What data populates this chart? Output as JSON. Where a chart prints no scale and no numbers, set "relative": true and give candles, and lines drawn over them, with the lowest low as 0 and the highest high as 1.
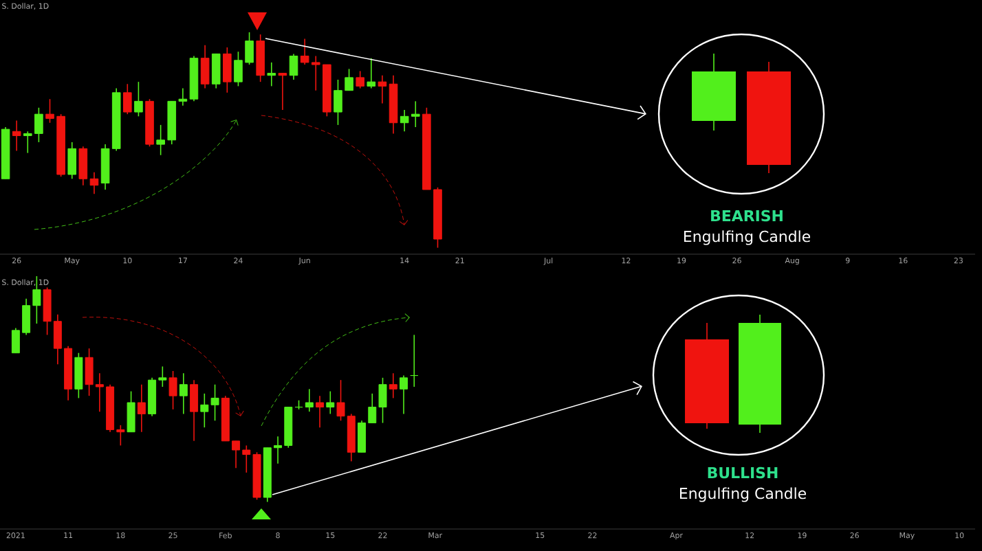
{
  "chart_data": [
    {
      "type": "candlestick",
      "relative": true,
      "categories": [
        null,
        "26",
        null,
        null,
        null,
        null,
        "May",
        null,
        null,
        null,
        null,
        "10",
        null,
        null,
        null,
        null,
        "17",
        null,
        null,
        null,
        null,
        "24",
        null,
        null,
        null,
        null,
        null,
        "Jun",
        null,
        null,
        null,
        null,
        null,
        null,
        null,
        null,
        "14",
        null,
        null,
        null,
        null,
        "21",
        null,
        null,
        null,
        null,
        null,
        null,
        null,
        "Jul",
        null,
        null,
        null,
        null,
        null,
        null,
        "12",
        null,
        null,
        null,
        null,
        "19",
        null,
        null,
        null,
        null,
        "26",
        null,
        null,
        null,
        null,
        "Aug",
        null,
        null,
        null,
        null,
        "9",
        null,
        null,
        null,
        null,
        "16",
        null,
        null,
        null,
        null,
        "23",
        null
      ],
      "colors": [
        "#52ef1c",
        "#f0140f",
        "#52ef1c",
        "#52ef1c",
        "#f0140f",
        "#f0140f",
        "#52ef1c",
        "#f0140f",
        "#f0140f",
        "#52ef1c",
        "#52ef1c",
        "#f0140f",
        "#52ef1c",
        "#f0140f",
        "#52ef1c",
        "#52ef1c",
        "#52ef1c",
        "#52ef1c",
        "#f0140f",
        "#52ef1c",
        "#f0140f",
        "#52ef1c",
        "#52ef1c",
        "#f0140f",
        "#52ef1c",
        "#f0140f",
        "#52ef1c",
        "#f0140f",
        "#f0140f",
        "#f0140f",
        "#52ef1c",
        "#52ef1c",
        "#f0140f",
        "#52ef1c",
        "#f0140f",
        "#f0140f",
        "#52ef1c",
        "#52ef1c",
        "#f0140f",
        "#f0140f",
        null,
        null,
        null,
        null,
        null,
        null,
        null,
        null,
        null,
        null,
        null,
        null,
        null,
        null,
        null,
        null,
        null,
        null,
        null,
        null,
        null,
        null,
        null,
        null,
        null,
        null,
        null,
        null,
        null,
        null,
        null,
        null,
        null,
        null,
        null,
        null,
        null,
        null,
        null,
        null,
        null,
        null,
        null,
        null,
        null,
        null,
        null,
        null
      ],
      "annotations": [
        "S. Dollar, 1D",
        "BEARISH",
        "Engulfing Candle"
      ],
      "ohlc": [
        [
          0.32,
          0.56,
          0.32,
          0.55
        ],
        [
          0.54,
          0.59,
          0.45,
          0.52
        ],
        [
          0.52,
          0.54,
          0.44,
          0.53
        ],
        [
          0.53,
          0.65,
          0.49,
          0.62
        ],
        [
          0.62,
          0.69,
          0.58,
          0.6
        ],
        [
          0.61,
          0.62,
          0.33,
          0.34
        ],
        [
          0.34,
          0.49,
          0.32,
          0.46
        ],
        [
          0.46,
          0.47,
          0.29,
          0.32
        ],
        [
          0.32,
          0.35,
          0.25,
          0.29
        ],
        [
          0.3,
          0.48,
          0.27,
          0.46
        ],
        [
          0.46,
          0.74,
          0.45,
          0.72
        ],
        [
          0.72,
          0.76,
          0.62,
          0.63
        ],
        [
          0.63,
          0.77,
          0.61,
          0.68
        ],
        [
          0.68,
          0.69,
          0.47,
          0.48
        ],
        [
          0.48,
          0.57,
          0.43,
          0.5
        ],
        [
          0.5,
          0.68,
          0.48,
          0.68
        ],
        [
          0.68,
          0.74,
          0.66,
          0.69
        ],
        [
          0.69,
          0.89,
          0.68,
          0.88
        ],
        [
          0.88,
          0.94,
          0.74,
          0.76
        ],
        [
          0.76,
          0.9,
          0.74,
          0.9
        ],
        [
          0.9,
          0.93,
          0.72,
          0.77
        ],
        [
          0.77,
          0.91,
          0.75,
          0.87
        ],
        [
          0.86,
          1.0,
          0.85,
          0.96
        ],
        [
          0.96,
          0.99,
          0.77,
          0.8
        ],
        [
          0.8,
          0.86,
          0.75,
          0.81
        ],
        [
          0.81,
          0.81,
          0.64,
          0.8
        ],
        [
          0.8,
          0.9,
          0.78,
          0.89
        ],
        [
          0.89,
          0.97,
          0.85,
          0.86
        ],
        [
          0.86,
          0.89,
          0.73,
          0.85
        ],
        [
          0.85,
          0.85,
          0.61,
          0.63
        ],
        [
          0.63,
          0.78,
          0.57,
          0.73
        ],
        [
          0.73,
          0.83,
          0.73,
          0.79
        ],
        [
          0.79,
          0.82,
          0.74,
          0.75
        ],
        [
          0.75,
          0.88,
          0.74,
          0.77
        ],
        [
          0.77,
          0.8,
          0.67,
          0.75
        ],
        [
          0.76,
          0.8,
          0.53,
          0.58
        ],
        [
          0.58,
          0.64,
          0.54,
          0.61
        ],
        [
          0.61,
          0.68,
          0.56,
          0.62
        ],
        [
          0.62,
          0.65,
          0.27,
          0.27
        ],
        [
          0.27,
          0.28,
          0.0,
          0.04
        ],
        null,
        null,
        null,
        null,
        null,
        null,
        null,
        null,
        null,
        null,
        null,
        null,
        null,
        null,
        null,
        null,
        null,
        null,
        null,
        null,
        null,
        null,
        null,
        null,
        null,
        null,
        null,
        null,
        null,
        null,
        null,
        null,
        null,
        null,
        null,
        null,
        null,
        null,
        null,
        null,
        null,
        null,
        null,
        null,
        null,
        null,
        null,
        null
      ]
    },
    {
      "type": "candlestick",
      "relative": true,
      "categories": [
        null,
        "2021",
        null,
        null,
        null,
        null,
        "11",
        null,
        null,
        null,
        null,
        "18",
        null,
        null,
        null,
        null,
        "25",
        null,
        null,
        null,
        null,
        "Feb",
        null,
        null,
        null,
        null,
        "8",
        null,
        null,
        null,
        null,
        "15",
        null,
        null,
        null,
        null,
        "22",
        null,
        null,
        null,
        null,
        "Mar",
        null,
        null,
        null,
        null,
        null,
        null,
        null,
        null,
        null,
        "15",
        null,
        null,
        null,
        null,
        "22",
        null,
        null,
        null,
        null,
        null,
        null,
        null,
        "Apr",
        null,
        null,
        null,
        null,
        null,
        null,
        "12",
        null,
        null,
        null,
        null,
        "19",
        null,
        null,
        null,
        null,
        "26",
        null,
        null,
        null,
        null,
        "May",
        null,
        null,
        null,
        null,
        "10",
        null
      ],
      "colors": [
        null,
        "#52ef1c",
        "#52ef1c",
        "#52ef1c",
        "#f0140f",
        "#f0140f",
        "#f0140f",
        "#52ef1c",
        "#f0140f",
        "#f0140f",
        "#f0140f",
        "#f0140f",
        "#52ef1c",
        "#f0140f",
        "#52ef1c",
        "#52ef1c",
        "#f0140f",
        "#52ef1c",
        "#f0140f",
        "#52ef1c",
        "#52ef1c",
        "#f0140f",
        "#f0140f",
        "#f0140f",
        "#f0140f",
        "#52ef1c",
        "#52ef1c",
        "#52ef1c",
        "#52ef1c",
        "#52ef1c",
        "#f0140f",
        "#52ef1c",
        "#f0140f",
        "#f0140f",
        "#52ef1c",
        "#52ef1c",
        "#52ef1c",
        "#f0140f",
        "#52ef1c",
        "#52ef1c",
        null,
        null,
        null,
        null,
        null,
        null,
        null,
        null,
        null,
        null,
        null,
        null,
        null,
        null,
        null,
        null,
        null,
        null,
        null,
        null,
        null,
        null,
        null,
        null,
        null,
        null,
        null,
        null,
        null,
        null,
        null,
        null,
        null,
        null,
        null,
        null,
        null,
        null,
        null,
        null,
        null,
        null,
        null,
        null,
        null,
        null,
        null,
        null,
        null,
        null,
        null,
        null,
        null
      ],
      "annotations": [
        "S. Dollar, 1D",
        "BULLISH",
        "Engulfing Candle"
      ],
      "ohlc": [
        null,
        [
          0.66,
          0.77,
          0.66,
          0.76
        ],
        [
          0.75,
          0.9,
          0.74,
          0.87
        ],
        [
          0.87,
          1.0,
          0.79,
          0.94
        ],
        [
          0.94,
          0.95,
          0.74,
          0.8
        ],
        [
          0.8,
          0.83,
          0.61,
          0.68
        ],
        [
          0.68,
          0.69,
          0.45,
          0.5
        ],
        [
          0.5,
          0.66,
          0.46,
          0.64
        ],
        [
          0.64,
          0.68,
          0.47,
          0.52
        ],
        [
          0.52,
          0.57,
          0.4,
          0.51
        ],
        [
          0.51,
          0.52,
          0.31,
          0.32
        ],
        [
          0.32,
          0.34,
          0.25,
          0.31
        ],
        [
          0.31,
          0.49,
          0.31,
          0.44
        ],
        [
          0.44,
          0.52,
          0.31,
          0.39
        ],
        [
          0.39,
          0.55,
          0.38,
          0.54
        ],
        [
          0.54,
          0.6,
          0.51,
          0.55
        ],
        [
          0.55,
          0.58,
          0.41,
          0.47
        ],
        [
          0.47,
          0.57,
          0.39,
          0.52
        ],
        [
          0.52,
          0.54,
          0.27,
          0.4
        ],
        [
          0.4,
          0.48,
          0.33,
          0.43
        ],
        [
          0.43,
          0.52,
          0.36,
          0.46
        ],
        [
          0.46,
          0.47,
          0.27,
          0.27
        ],
        [
          0.27,
          0.27,
          0.15,
          0.23
        ],
        [
          0.23,
          0.25,
          0.13,
          0.21
        ],
        [
          0.21,
          0.22,
          0.01,
          0.02
        ],
        [
          0.02,
          0.24,
          0.0,
          0.24
        ],
        [
          0.24,
          0.29,
          0.17,
          0.25
        ],
        [
          0.25,
          0.42,
          0.24,
          0.42
        ],
        [
          0.42,
          0.45,
          0.41,
          0.42
        ],
        [
          0.42,
          0.5,
          0.4,
          0.44
        ],
        [
          0.44,
          0.47,
          0.33,
          0.42
        ],
        [
          0.42,
          0.49,
          0.39,
          0.44
        ],
        [
          0.44,
          0.54,
          0.36,
          0.38
        ],
        [
          0.38,
          0.39,
          0.18,
          0.22
        ],
        [
          0.22,
          0.36,
          0.22,
          0.35
        ],
        [
          0.35,
          0.48,
          0.35,
          0.42
        ],
        [
          0.42,
          0.55,
          0.35,
          0.52
        ],
        [
          0.52,
          0.57,
          0.46,
          0.5
        ],
        [
          0.5,
          0.56,
          0.39,
          0.55
        ],
        [
          0.56,
          0.74,
          0.51,
          0.56
        ],
        null,
        null,
        null,
        null,
        null,
        null,
        null,
        null,
        null,
        null,
        null,
        null,
        null,
        null,
        null,
        null,
        null,
        null,
        null,
        null,
        null,
        null,
        null,
        null,
        null,
        null,
        null,
        null,
        null,
        null,
        null,
        null,
        null,
        null,
        null,
        null,
        null,
        null,
        null,
        null,
        null,
        null,
        null,
        null,
        null,
        null,
        null,
        null,
        null,
        null,
        null,
        null,
        null
      ]
    }
  ]
}
